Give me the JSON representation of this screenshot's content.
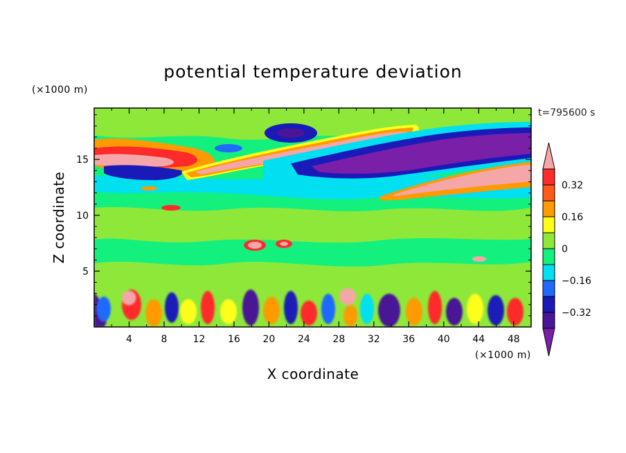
{
  "chart_data": {
    "type": "heatmap",
    "title": "potential temperature deviation",
    "xlabel": "X coordinate",
    "ylabel": "Z coordinate",
    "x_unit": "(×1000 m)",
    "y_unit": "(×1000 m)",
    "time_label": "t=795600 s",
    "xlim": [
      0,
      50
    ],
    "ylim": [
      0,
      19.6
    ],
    "x_ticks": [
      "4",
      "8",
      "12",
      "16",
      "20",
      "24",
      "28",
      "32",
      "36",
      "40",
      "44",
      "48"
    ],
    "y_ticks": [
      "5",
      "10",
      "15"
    ],
    "colorbar": {
      "levels": [
        -0.4,
        -0.32,
        -0.24,
        -0.16,
        -0.08,
        0,
        0.08,
        0.16,
        0.24,
        0.32,
        0.4
      ],
      "tick_labels": [
        "0.32",
        "0.16",
        "0",
        "−0.16",
        "−0.32"
      ],
      "colors": [
        "#7a1fa8",
        "#4a1596",
        "#1a1ab8",
        "#1f6bff",
        "#00e0f0",
        "#14f07e",
        "#8ee83a",
        "#ffff1a",
        "#ff9a00",
        "#ff5a1a",
        "#ff2a2a",
        "#f5a6a8"
      ],
      "extend": "both"
    },
    "bands": [
      {
        "z_range": [
          0,
          3.5
        ],
        "description_value": "mixed",
        "range": [
          -0.4,
          0.4
        ]
      },
      {
        "z_range": [
          3.5,
          12
        ],
        "range": [
          0,
          0.08
        ]
      },
      {
        "z_range": [
          12,
          14.5
        ],
        "range": [
          -0.16,
          0
        ]
      },
      {
        "z_range": [
          14.5,
          17.5
        ],
        "range": [
          -0.4,
          0.4
        ]
      },
      {
        "z_range": [
          17.5,
          19.6
        ],
        "range": [
          0,
          0.08
        ]
      }
    ]
  },
  "colors": {
    "background": "#ffffff",
    "frame": "#000000",
    "base_field": "#14f07e"
  }
}
